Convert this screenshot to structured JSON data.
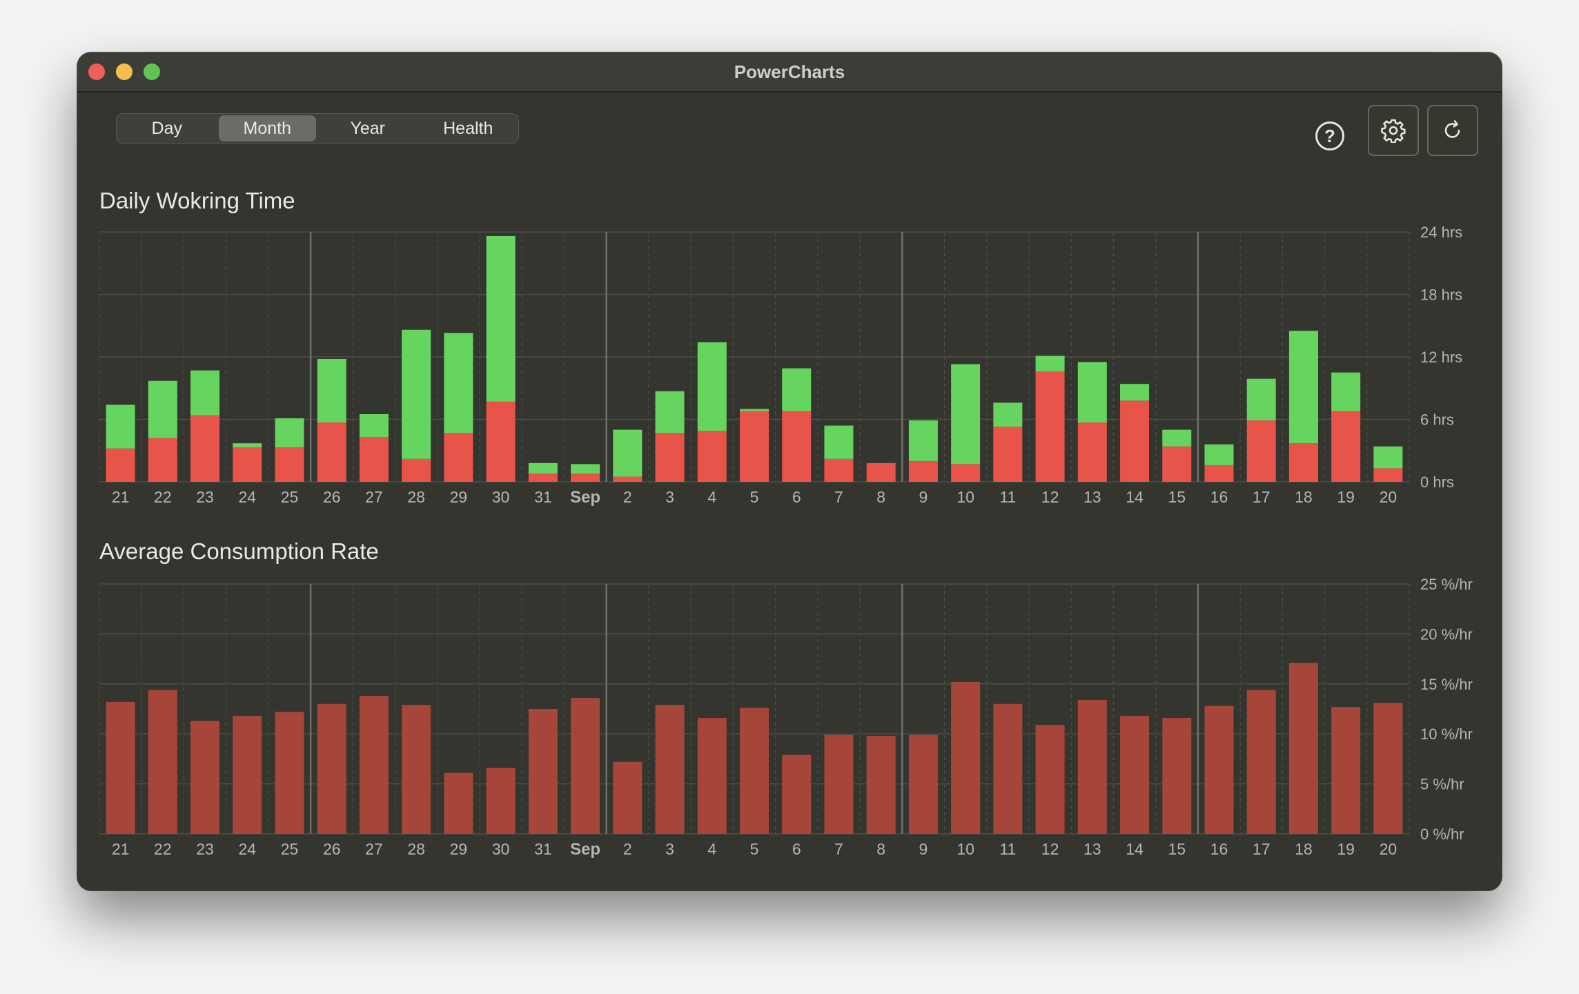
{
  "window": {
    "title": "PowerCharts"
  },
  "segments": {
    "day": "Day",
    "month": "Month",
    "year": "Year",
    "health": "Health",
    "selected": "Month"
  },
  "toolbar": {
    "help_label": "?"
  },
  "icons": {
    "help": "question-circle-icon",
    "settings": "gear-icon",
    "refresh": "refresh-icon"
  },
  "colors": {
    "green": "#66d55f",
    "red": "#e9544a",
    "consumption": "#a6453a",
    "background": "#34352f",
    "grid": "#4e4f49",
    "tick_text": "#b5b5b0"
  },
  "chart_data": [
    {
      "type": "bar",
      "stacked": true,
      "title": "Daily Wokring Time",
      "categories": [
        "21",
        "22",
        "23",
        "24",
        "25",
        "26",
        "27",
        "28",
        "29",
        "30",
        "31",
        "Sep",
        "2",
        "3",
        "4",
        "5",
        "6",
        "7",
        "8",
        "9",
        "10",
        "11",
        "12",
        "13",
        "14",
        "15",
        "16",
        "17",
        "18",
        "19",
        "20"
      ],
      "series": [
        {
          "color": "red",
          "values": [
            3.2,
            4.2,
            6.4,
            3.3,
            3.3,
            5.7,
            4.3,
            2.2,
            4.7,
            7.7,
            0.8,
            0.8,
            0.5,
            4.7,
            4.9,
            6.8,
            6.8,
            2.2,
            1.8,
            2.0,
            1.7,
            5.3,
            10.6,
            5.7,
            7.8,
            3.4,
            1.6,
            5.9,
            3.7,
            6.8,
            1.3
          ]
        },
        {
          "color": "green",
          "values": [
            4.2,
            5.5,
            4.3,
            0.4,
            2.8,
            6.1,
            2.2,
            12.4,
            9.6,
            15.9,
            1.0,
            0.9,
            4.5,
            4.0,
            8.5,
            0.2,
            4.1,
            3.2,
            0,
            3.9,
            9.6,
            2.3,
            1.5,
            5.8,
            1.6,
            1.6,
            2.0,
            4.0,
            10.8,
            3.7,
            2.1
          ]
        }
      ],
      "y_ticks": [
        "0 hrs",
        "6 hrs",
        "12 hrs",
        "18 hrs",
        "24 hrs"
      ],
      "ylim": [
        0,
        24
      ],
      "week_separators_after": [
        "25",
        "Sep",
        "8",
        "15"
      ],
      "grid": true
    },
    {
      "type": "bar",
      "title": "Average Consumption Rate",
      "categories": [
        "21",
        "22",
        "23",
        "24",
        "25",
        "26",
        "27",
        "28",
        "29",
        "30",
        "31",
        "Sep",
        "2",
        "3",
        "4",
        "5",
        "6",
        "7",
        "8",
        "9",
        "10",
        "11",
        "12",
        "13",
        "14",
        "15",
        "16",
        "17",
        "18",
        "19",
        "20"
      ],
      "values": [
        13.2,
        14.4,
        11.3,
        11.8,
        12.2,
        13.0,
        13.8,
        12.9,
        6.1,
        6.6,
        12.5,
        13.6,
        7.2,
        12.9,
        11.6,
        12.6,
        7.9,
        9.9,
        9.8,
        9.9,
        15.2,
        13.0,
        10.9,
        13.4,
        11.8,
        11.6,
        12.8,
        14.4,
        17.1,
        12.7,
        13.1
      ],
      "y_ticks": [
        "0 %/hr",
        "5 %/hr",
        "10 %/hr",
        "15 %/hr",
        "20 %/hr",
        "25 %/hr"
      ],
      "ylim": [
        0,
        25
      ],
      "week_separators_after": [
        "25",
        "Sep",
        "8",
        "15"
      ],
      "grid": true
    }
  ]
}
